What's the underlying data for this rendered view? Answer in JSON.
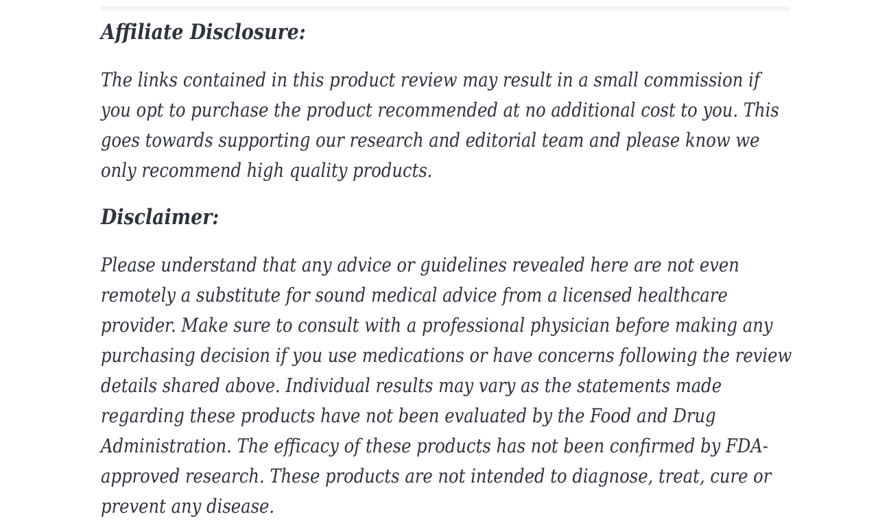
{
  "page": {
    "background_color": "#ffffff",
    "text_color": "#2e333d",
    "divider_color": "#f3f3f3"
  },
  "article": {
    "sections": [
      {
        "heading": "Affiliate Disclosure:",
        "lines": [
          "The links contained in this product review may result in a small commission if",
          "you opt to purchase the product recommended at no additional cost to you. This",
          "goes towards supporting our research and editorial team and please know we",
          "only recommend high quality products."
        ]
      },
      {
        "heading": "Disclaimer:",
        "lines": [
          "Please understand that any advice or guidelines revealed here are not even",
          "remotely a substitute for sound medical advice from a licensed healthcare",
          "provider. Make sure to consult with a professional physician before making any",
          "purchasing decision if you use medications or have concerns following the review",
          "details shared above. Individual results may vary as the statements made",
          "regarding these products have not been evaluated by the Food and Drug",
          "Administration. The efficacy of these products has not been confirmed by FDA-",
          "approved research. These products are not intended to diagnose, treat, cure or",
          "prevent any disease."
        ]
      }
    ]
  }
}
